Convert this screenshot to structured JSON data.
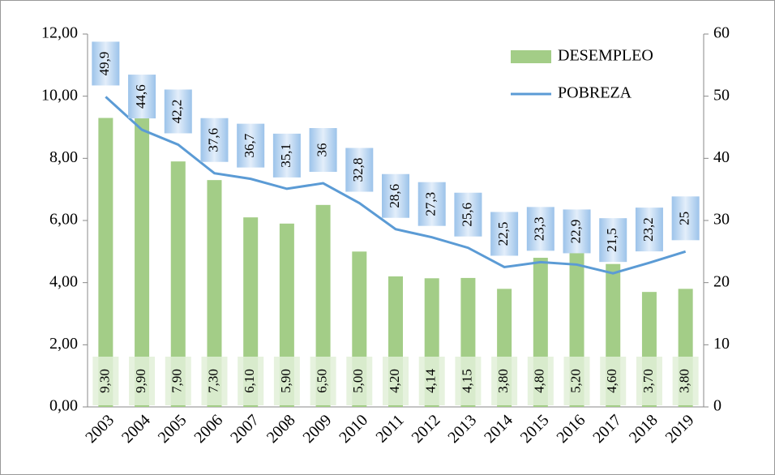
{
  "chart_data": {
    "type": "bar",
    "categories": [
      "2003",
      "2004",
      "2005",
      "2006",
      "2007",
      "2008",
      "2009",
      "2010",
      "2011",
      "2012",
      "2013",
      "2014",
      "2015",
      "2016",
      "2017",
      "2018",
      "2019"
    ],
    "series": [
      {
        "name": "DESEMPLEO",
        "type": "bar",
        "color": "#a3cd87",
        "values": [
          9.3,
          9.9,
          7.9,
          7.3,
          6.1,
          5.9,
          6.5,
          5.0,
          4.2,
          4.14,
          4.15,
          3.8,
          4.8,
          5.2,
          4.6,
          3.7,
          3.8
        ],
        "value_labels": [
          "9,30",
          "9,90",
          "7,90",
          "7,30",
          "6,10",
          "5,90",
          "6,50",
          "5,00",
          "4,20",
          "4,14",
          "4,15",
          "3,80",
          "4,80",
          "5,20",
          "4,60",
          "3,70",
          "3,80"
        ]
      },
      {
        "name": "POBREZA",
        "type": "line",
        "axis": "y2",
        "color": "#5b9bd5",
        "values": [
          49.9,
          44.6,
          42.2,
          37.6,
          36.7,
          35.1,
          36,
          32.8,
          28.6,
          27.3,
          25.6,
          22.5,
          23.3,
          22.9,
          21.5,
          23.2,
          25
        ],
        "value_labels": [
          "49,9",
          "44,6",
          "42,2",
          "37,6",
          "36,7",
          "35,1",
          "36",
          "32,8",
          "28,6",
          "27,3",
          "25,6",
          "22,5",
          "23,3",
          "22,9",
          "21,5",
          "23,2",
          "25"
        ]
      }
    ],
    "ylim": [
      0,
      12
    ],
    "yticks": [
      {
        "value": 0,
        "label": "0,00"
      },
      {
        "value": 2,
        "label": "2,00"
      },
      {
        "value": 4,
        "label": "4,00"
      },
      {
        "value": 6,
        "label": "6,00"
      },
      {
        "value": 8,
        "label": "8,00"
      },
      {
        "value": 10,
        "label": "10,00"
      },
      {
        "value": 12,
        "label": "12,00"
      }
    ],
    "y2lim": [
      0,
      60
    ],
    "y2ticks": [
      0,
      10,
      20,
      30,
      40,
      50,
      60
    ],
    "legend": "upper right"
  }
}
